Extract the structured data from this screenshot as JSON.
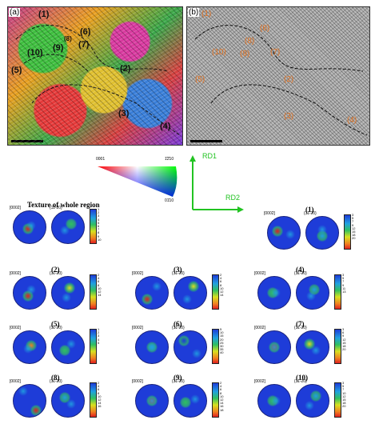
{
  "figure": {
    "panel_a_label": "(a)",
    "panel_b_label": "(b)",
    "region_labels": [
      "(1)",
      "(2)",
      "(3)",
      "(4)",
      "(5)",
      "(6)",
      "(7)",
      "(8)",
      "(9)",
      "(10)"
    ],
    "ipf_key": {
      "corner_0001": "0001",
      "corner_1210": "1̄2̄10",
      "corner_0110": "01̄10"
    },
    "axes": {
      "rd1": "RD1",
      "rd2": "RD2"
    },
    "whole_title": "Texture of whole region",
    "pole_basal": "[0002]",
    "pole_prism": "{11-20}",
    "colorbars": {
      "whole": [
        "1",
        "2",
        "3",
        "4",
        "5",
        "6",
        "7",
        "8",
        "9",
        "10"
      ],
      "r1": [
        "3",
        "5",
        "7",
        "9",
        "12",
        "15",
        "18",
        "20"
      ],
      "r2": [
        "2",
        "4",
        "6",
        "8",
        "10",
        "12",
        "14"
      ],
      "r3": [
        "2",
        "4",
        "6",
        "8",
        "10",
        "12",
        "14"
      ],
      "r4": [
        "3",
        "5",
        "7",
        "9",
        "11",
        "13"
      ],
      "r5": [
        "1",
        "2",
        "3",
        "4",
        "5"
      ],
      "r6": [
        "5",
        "10",
        "15",
        "20",
        "25",
        "30",
        "35",
        "40"
      ],
      "r7": [
        "3",
        "6",
        "9",
        "12",
        "15",
        "18",
        "20"
      ],
      "r8": [
        "2",
        "4",
        "6",
        "8",
        "10",
        "12",
        "14",
        "16"
      ],
      "r9": [
        "2",
        "4",
        "6",
        "8",
        "10",
        "12",
        "14",
        "16",
        "18"
      ],
      "r10": [
        "3",
        "5",
        "7",
        "10",
        "12",
        "15",
        "18",
        "20"
      ]
    }
  }
}
